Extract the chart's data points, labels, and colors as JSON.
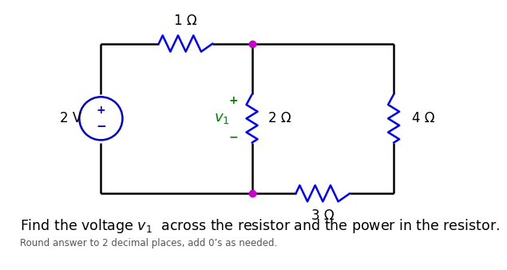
{
  "bg_color": "#ffffff",
  "circuit_color": "#000000",
  "blue": "#0000ff",
  "node_color": "#cc00cc",
  "vs_color": "#0000cc",
  "green": "#008000",
  "title_text": "Find the voltage $v_1$  across the resistor and the power in the resistor.",
  "subtitle_text": "Round answer to 0’s as needed.",
  "label_1ohm": "1 Ω",
  "label_2ohm": "2 Ω",
  "label_3ohm": "3 Ω",
  "label_4ohm": "4 Ω",
  "label_2V": "2 V",
  "label_v1": "$v_1$",
  "title_fontsize": 12.5,
  "subtitle_fontsize": 8.5,
  "label_fontsize": 12,
  "lw": 1.8
}
